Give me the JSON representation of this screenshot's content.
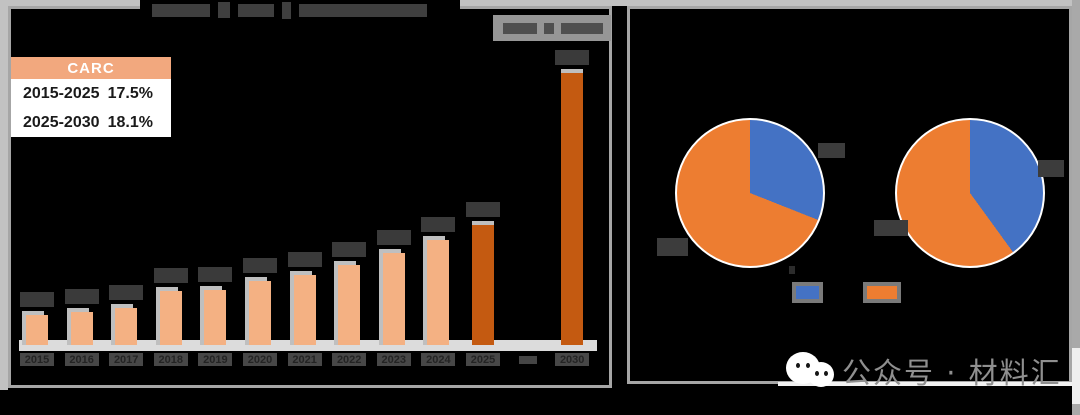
{
  "watermark": {
    "text": "公众号 · 材料汇"
  },
  "left_panel": {
    "title_obscured": true,
    "source_box_obscured": true,
    "carc": {
      "header": "CARC",
      "rows": [
        {
          "period": "2015-2025",
          "value": "17.5%"
        },
        {
          "period": "2025-2030",
          "value": "18.1%"
        }
      ]
    }
  },
  "colors": {
    "bar_light": "#F4B183",
    "bar_dark": "#C45A11",
    "pie_blue": "#4472C4",
    "pie_orange": "#ED7D31",
    "carc_header": "#F2A87E",
    "axis_strip": "#DCDCDC",
    "panel_border": "#A6A6A6"
  },
  "chart_data": [
    {
      "type": "bar",
      "title_obscured": true,
      "data_labels_obscured": true,
      "categories": [
        "2015",
        "2016",
        "2017",
        "2018",
        "2019",
        "2020",
        "2021",
        "2022",
        "2023",
        "2024",
        "2025",
        "……",
        "2030"
      ],
      "relative_heights": [
        30,
        33,
        37,
        54,
        55,
        64,
        70,
        80,
        92,
        105,
        120,
        null,
        272
      ],
      "dark_indices": [
        10,
        12
      ],
      "cagr": {
        "2015-2025": "17.5%",
        "2025-2030": "18.1%"
      }
    },
    {
      "type": "pie",
      "labels_obscured": true,
      "slices": [
        {
          "name": "blue",
          "color": "#4472C4",
          "pct": 31
        },
        {
          "name": "orange",
          "color": "#ED7D31",
          "pct": 69
        }
      ]
    },
    {
      "type": "pie",
      "labels_obscured": true,
      "slices": [
        {
          "name": "blue",
          "color": "#4472C4",
          "pct": 40
        },
        {
          "name": "orange",
          "color": "#ED7D31",
          "pct": 60
        }
      ]
    }
  ],
  "legend": {
    "labels_obscured": true,
    "swatch_colors": [
      "#4472C4",
      "#ED7D31"
    ]
  }
}
